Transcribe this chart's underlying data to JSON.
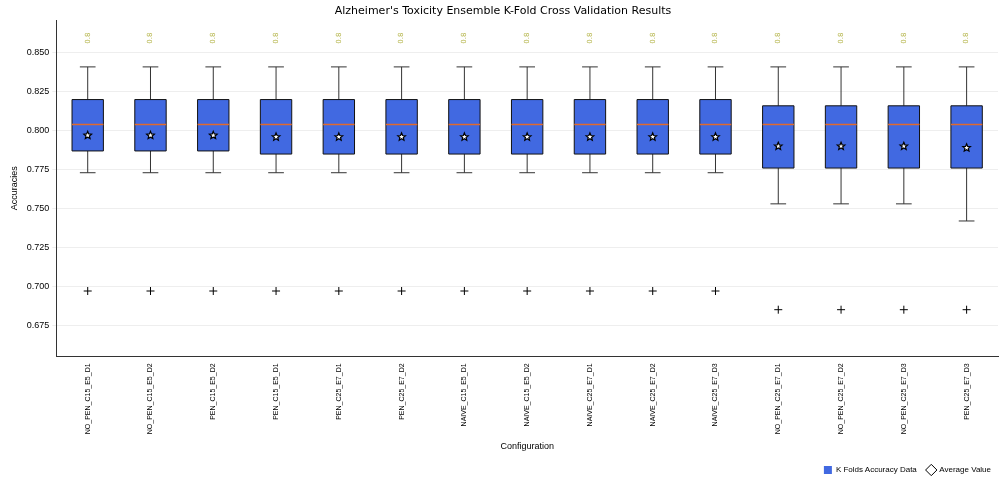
{
  "chart_data": {
    "type": "box",
    "title": "Alzheimer's Toxicity Ensemble K-Fold Cross Validation Results",
    "xlabel": "Configuration",
    "ylabel": "Accuracies",
    "categories": [
      "NO_PEN_C15_E5_D1",
      "NO_PEN_C15_E5_D2",
      "PEN_C15_E5_D2",
      "PEN_C15_E5_D1",
      "PEN_C25_E7_D1",
      "PEN_C25_E7_D2",
      "NAIVE_C15_E5_D1",
      "NAIVE_C15_E5_D2",
      "NAIVE_C25_E7_D1",
      "NAIVE_C25_E7_D2",
      "NAIVE_C25_E7_D3",
      "NO_PEN_C25_E7_D1",
      "NO_PEN_C25_E7_D2",
      "NO_PEN_C25_E7_D3",
      "PEN_C25_E7_D3"
    ],
    "ylim": [
      0.655,
      0.871
    ],
    "yticks": [
      {
        "value": 0.675,
        "label": "0.675"
      },
      {
        "value": 0.7,
        "label": "0.700"
      },
      {
        "value": 0.725,
        "label": "0.725"
      },
      {
        "value": 0.75,
        "label": "0.750"
      },
      {
        "value": 0.775,
        "label": "0.775"
      },
      {
        "value": 0.8,
        "label": "0.800"
      },
      {
        "value": 0.825,
        "label": "0.825"
      },
      {
        "value": 0.85,
        "label": "0.850"
      }
    ],
    "grid": "y",
    "legend": "bottom right",
    "series": [
      {
        "name": "K Folds Accuracy Data",
        "color": "#4169e1",
        "boxes": [
          {
            "low": 0.773,
            "q1": 0.787,
            "median": 0.804,
            "q3": 0.82,
            "high": 0.841,
            "outliers": [
              0.697
            ]
          },
          {
            "low": 0.773,
            "q1": 0.787,
            "median": 0.804,
            "q3": 0.82,
            "high": 0.841,
            "outliers": [
              0.697
            ]
          },
          {
            "low": 0.773,
            "q1": 0.787,
            "median": 0.804,
            "q3": 0.82,
            "high": 0.841,
            "outliers": [
              0.697
            ]
          },
          {
            "low": 0.773,
            "q1": 0.785,
            "median": 0.804,
            "q3": 0.82,
            "high": 0.841,
            "outliers": [
              0.697
            ]
          },
          {
            "low": 0.773,
            "q1": 0.785,
            "median": 0.804,
            "q3": 0.82,
            "high": 0.841,
            "outliers": [
              0.697
            ]
          },
          {
            "low": 0.773,
            "q1": 0.785,
            "median": 0.804,
            "q3": 0.82,
            "high": 0.841,
            "outliers": [
              0.697
            ]
          },
          {
            "low": 0.773,
            "q1": 0.785,
            "median": 0.804,
            "q3": 0.82,
            "high": 0.841,
            "outliers": [
              0.697
            ]
          },
          {
            "low": 0.773,
            "q1": 0.785,
            "median": 0.804,
            "q3": 0.82,
            "high": 0.841,
            "outliers": [
              0.697
            ]
          },
          {
            "low": 0.773,
            "q1": 0.785,
            "median": 0.804,
            "q3": 0.82,
            "high": 0.841,
            "outliers": [
              0.697
            ]
          },
          {
            "low": 0.773,
            "q1": 0.785,
            "median": 0.804,
            "q3": 0.82,
            "high": 0.841,
            "outliers": [
              0.697
            ]
          },
          {
            "low": 0.773,
            "q1": 0.785,
            "median": 0.804,
            "q3": 0.82,
            "high": 0.841,
            "outliers": [
              0.697
            ]
          },
          {
            "low": 0.753,
            "q1": 0.776,
            "median": 0.804,
            "q3": 0.816,
            "high": 0.841,
            "outliers": [
              0.685
            ]
          },
          {
            "low": 0.753,
            "q1": 0.776,
            "median": 0.804,
            "q3": 0.816,
            "high": 0.841,
            "outliers": [
              0.685
            ]
          },
          {
            "low": 0.753,
            "q1": 0.776,
            "median": 0.804,
            "q3": 0.816,
            "high": 0.841,
            "outliers": [
              0.685
            ]
          },
          {
            "low": 0.742,
            "q1": 0.776,
            "median": 0.804,
            "q3": 0.816,
            "high": 0.841,
            "outliers": [
              0.685
            ]
          }
        ]
      },
      {
        "name": "Average Value",
        "type": "scatter",
        "color": "#000000",
        "marker": "star",
        "values": [
          0.797,
          0.797,
          0.797,
          0.796,
          0.796,
          0.796,
          0.796,
          0.796,
          0.796,
          0.796,
          0.796,
          0.79,
          0.79,
          0.79,
          0.789
        ]
      }
    ],
    "annotations": [
      "0.8",
      "0.8",
      "0.8",
      "0.8",
      "0.8",
      "0.8",
      "0.8",
      "0.8",
      "0.8",
      "0.8",
      "0.8",
      "0.8",
      "0.8",
      "0.8",
      "0.8"
    ]
  }
}
